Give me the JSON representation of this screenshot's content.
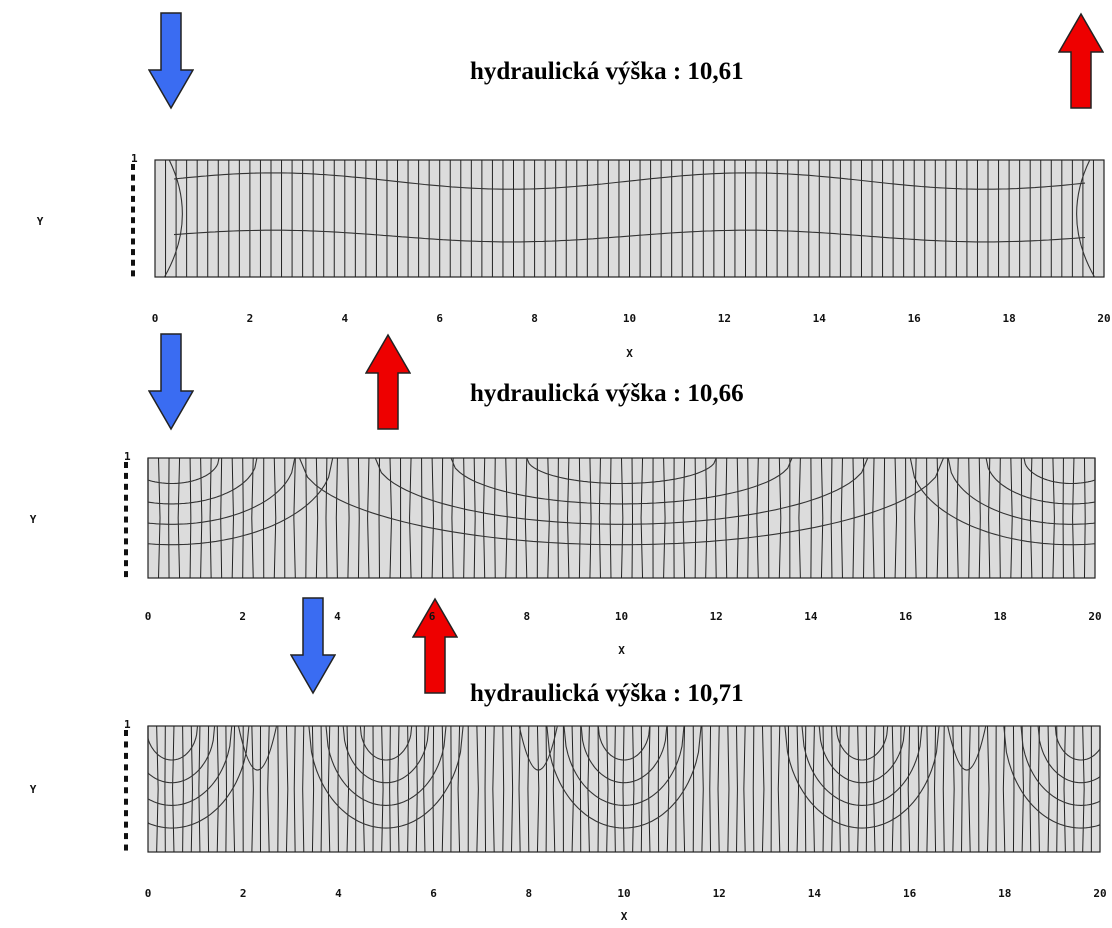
{
  "colors": {
    "down_arrow": "#3a6cf2",
    "up_arrow": "#ee0000",
    "plot_fill": "#dcdcdc",
    "line": "#222222"
  },
  "panels": [
    {
      "title": "hydraulická výška : 10,61",
      "xlabel": "X",
      "ylabel": "Y",
      "ytick_top": "1",
      "xticks": [
        "0",
        "2",
        "4",
        "6",
        "8",
        "10",
        "12",
        "14",
        "16",
        "18",
        "20"
      ],
      "arrows": [
        {
          "type": "down-arrow",
          "x": 0.5
        },
        {
          "type": "up-arrow",
          "x": 19.8
        }
      ]
    },
    {
      "title": "hydraulická výška : 10,66",
      "xlabel": "X",
      "ylabel": "Y",
      "ytick_top": "1",
      "xticks": [
        "0",
        "2",
        "4",
        "6",
        "8",
        "10",
        "12",
        "14",
        "16",
        "18",
        "20"
      ],
      "arrows": [
        {
          "type": "down-arrow",
          "x": 0.5
        },
        {
          "type": "up-arrow",
          "x": 5.0
        }
      ]
    },
    {
      "title": "hydraulická výška : 10,71",
      "xlabel": "X",
      "ylabel": "Y",
      "ytick_top": "1",
      "xticks": [
        "0",
        "2",
        "4",
        "6",
        "8",
        "10",
        "12",
        "14",
        "16",
        "18",
        "20"
      ],
      "arrows": [
        {
          "type": "down-arrow",
          "x": 3.5
        },
        {
          "type": "up-arrow",
          "x": 6.0
        }
      ]
    }
  ],
  "chart_data": [
    {
      "type": "contour",
      "title": "hydraulická výška : 10,61",
      "xlabel": "X",
      "ylabel": "Y",
      "xlim": [
        0,
        20
      ],
      "ylim": [
        0,
        1
      ],
      "vertical_lines": 90
    },
    {
      "type": "contour",
      "title": "hydraulická výška : 10,66",
      "xlabel": "X",
      "ylabel": "Y",
      "xlim": [
        0,
        20
      ],
      "ylim": [
        0,
        1
      ],
      "vertical_lines": 90
    },
    {
      "type": "contour",
      "title": "hydraulická výška : 10,71",
      "xlabel": "X",
      "ylabel": "Y",
      "xlim": [
        0,
        20
      ],
      "ylim": [
        0,
        1
      ],
      "vertical_lines": 110
    }
  ]
}
